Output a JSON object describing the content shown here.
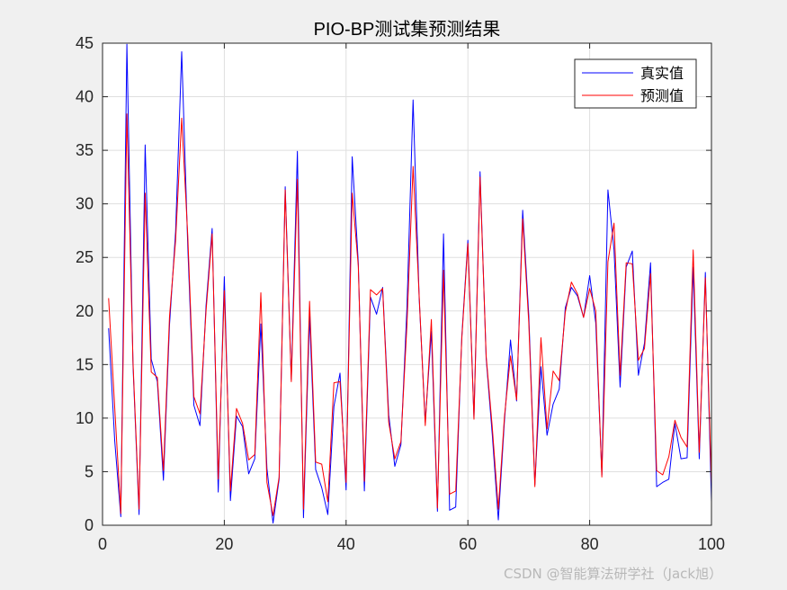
{
  "chart_data": {
    "type": "line",
    "title": "PIO-BP测试集预测结果",
    "xlabel": "",
    "ylabel": "",
    "xlim": [
      0,
      100
    ],
    "ylim": [
      0,
      45
    ],
    "xticks": [
      "0",
      "20",
      "40",
      "60",
      "80",
      "100"
    ],
    "yticks": [
      "0",
      "5",
      "10",
      "15",
      "20",
      "25",
      "30",
      "35",
      "40",
      "45"
    ],
    "grid": true,
    "legend_position": "top-right",
    "x": [
      1,
      2,
      3,
      4,
      5,
      6,
      7,
      8,
      9,
      10,
      11,
      12,
      13,
      14,
      15,
      16,
      17,
      18,
      19,
      20,
      21,
      22,
      23,
      24,
      25,
      26,
      27,
      28,
      29,
      30,
      31,
      32,
      33,
      34,
      35,
      36,
      37,
      38,
      39,
      40,
      41,
      42,
      43,
      44,
      45,
      46,
      47,
      48,
      49,
      50,
      51,
      52,
      53,
      54,
      55,
      56,
      57,
      58,
      59,
      60,
      61,
      62,
      63,
      64,
      65,
      66,
      67,
      68,
      69,
      70,
      71,
      72,
      73,
      74,
      75,
      76,
      77,
      78,
      79,
      80,
      81,
      82,
      83,
      84,
      85,
      86,
      87,
      88,
      89,
      90,
      91,
      92,
      93,
      94,
      95,
      96,
      97,
      98,
      99,
      100
    ],
    "series": [
      {
        "name": "真实值",
        "color": "#0000ff",
        "values": [
          18.4,
          7.9,
          0.8,
          44.9,
          15.0,
          1.0,
          35.5,
          15.5,
          13.4,
          4.2,
          18.7,
          27.4,
          44.2,
          26.0,
          11.2,
          9.3,
          20.5,
          27.7,
          3.1,
          23.2,
          2.3,
          10.2,
          9.2,
          4.8,
          6.2,
          18.8,
          5.3,
          0.2,
          4.3,
          31.6,
          13.6,
          34.9,
          0.7,
          19.5,
          5.2,
          3.5,
          1.0,
          11.1,
          14.2,
          3.3,
          34.4,
          24.5,
          3.2,
          21.3,
          19.7,
          22.2,
          10.3,
          5.5,
          7.5,
          20.4,
          39.7,
          21.2,
          9.6,
          18.1,
          1.3,
          27.2,
          1.4,
          1.7,
          17.6,
          26.6,
          10.0,
          33.0,
          15.6,
          8.5,
          0.5,
          9.7,
          17.3,
          11.6,
          29.4,
          19.6,
          3.8,
          14.8,
          8.4,
          11.3,
          12.7,
          20.3,
          22.2,
          21.4,
          19.4,
          23.3,
          18.9,
          4.7,
          31.3,
          25.7,
          12.9,
          24.1,
          25.6,
          14.0,
          17.0,
          24.5,
          3.6,
          4.0,
          4.3,
          9.5,
          6.2,
          6.3,
          24.1,
          6.2,
          23.6,
          2.2
        ]
      },
      {
        "name": "预测值",
        "color": "#ff0000",
        "values": [
          21.2,
          11.0,
          1.1,
          38.4,
          15.3,
          1.5,
          31.0,
          14.3,
          13.8,
          5.1,
          19.5,
          26.6,
          38.0,
          27.0,
          12.0,
          10.4,
          20.0,
          27.2,
          4.3,
          21.9,
          3.2,
          10.9,
          9.5,
          6.1,
          6.6,
          21.7,
          4.0,
          0.9,
          4.5,
          31.3,
          13.4,
          32.3,
          1.5,
          20.9,
          5.9,
          5.7,
          2.2,
          13.3,
          13.4,
          4.0,
          31.0,
          24.2,
          4.1,
          22.0,
          21.5,
          22.1,
          9.6,
          6.2,
          7.8,
          18.8,
          33.5,
          21.4,
          9.3,
          19.2,
          1.6,
          23.8,
          2.9,
          3.2,
          17.4,
          26.3,
          9.9,
          32.5,
          15.8,
          9.2,
          1.5,
          10.1,
          15.8,
          11.7,
          28.6,
          18.9,
          3.6,
          17.5,
          9.0,
          14.4,
          13.5,
          19.9,
          22.7,
          21.6,
          19.4,
          22.1,
          20.0,
          4.5,
          24.6,
          28.2,
          14.0,
          24.5,
          24.4,
          15.4,
          16.5,
          23.5,
          5.1,
          4.7,
          6.4,
          9.8,
          8.2,
          7.3,
          25.7,
          6.8,
          23.1,
          3.8
        ]
      }
    ]
  },
  "watermark": "CSDN @智能算法研学社（Jack旭）"
}
